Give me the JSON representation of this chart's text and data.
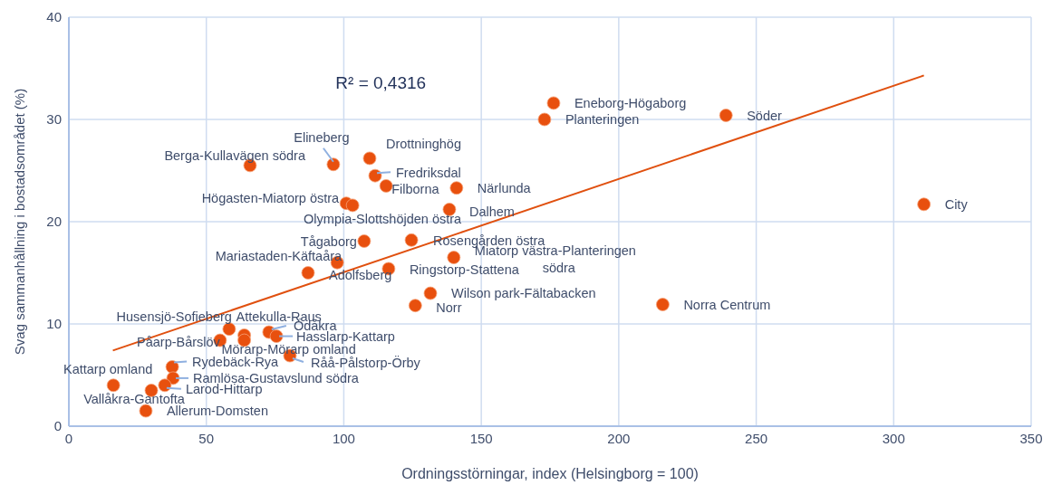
{
  "chart_data": {
    "type": "scatter",
    "xlabel": "Ordningsstörningar, index (Helsingborg = 100)",
    "ylabel": "Svag sammanhållning i bostadsområdet (%)",
    "xlim": [
      0,
      350
    ],
    "xticks": [
      0,
      50,
      100,
      150,
      200,
      250,
      300,
      350
    ],
    "ylim": [
      0,
      40
    ],
    "yticks": [
      0,
      10,
      20,
      30,
      40
    ],
    "grid": true,
    "series": [
      {
        "marker": "circle",
        "color": "#e8500e",
        "x": [
          311,
          239,
          176.3,
          173,
          216,
          141,
          138.4,
          109.4,
          111.4,
          115.4,
          96.2,
          65.9,
          100.9,
          103.2,
          107.4,
          124.6,
          140,
          97.6,
          87,
          116.3,
          131.5,
          126,
          58.3,
          63.8,
          63.8,
          55,
          72.8,
          75.5,
          80.4,
          37.6,
          37.9,
          34.9,
          30,
          16.2,
          28
        ],
        "values": [
          21.7,
          30.4,
          31.6,
          30,
          11.9,
          23.3,
          21.2,
          26.2,
          24.5,
          23.5,
          25.6,
          25.5,
          21.8,
          21.6,
          18.1,
          18.2,
          16.5,
          16,
          15,
          15.4,
          13,
          11.8,
          9.5,
          8.9,
          8.4,
          8.4,
          9.2,
          8.8,
          6.9,
          5.8,
          4.7,
          4,
          3.5,
          4,
          1.5
        ]
      },
      {
        "type": "line",
        "color": "#e0500f",
        "x": [
          16,
          311
        ],
        "values": [
          7.4,
          34.3
        ]
      }
    ],
    "annotations": [
      "R² = 0,4316",
      {
        "text": "City",
        "x": 311,
        "y": 21.7
      },
      {
        "text": "Söder",
        "x": 239,
        "y": 30.4
      },
      {
        "text": "Eneborg-Högaborg",
        "x": 176.3,
        "y": 31.6
      },
      {
        "text": "Planteringen",
        "x": 173,
        "y": 30
      },
      {
        "text": "Norra Centrum",
        "x": 216,
        "y": 11.9
      },
      {
        "text": "Närlunda",
        "x": 141,
        "y": 23.3
      },
      {
        "text": "Dalhem",
        "x": 138.4,
        "y": 21.2
      },
      {
        "text": "Drottninghög",
        "x": 109.4,
        "y": 26.2
      },
      {
        "text": "Fredriksdal",
        "x": 111.4,
        "y": 24.5
      },
      {
        "text": "Filborna",
        "x": 115.4,
        "y": 23.5
      },
      {
        "text": "Elineberg",
        "x": 96.2,
        "y": 25.6
      },
      {
        "text": "Berga-Kullavägen södra",
        "x": 65.9,
        "y": 25.5
      },
      {
        "text": "Högasten-Miatorp östra",
        "x": 100.9,
        "y": 21.8
      },
      {
        "text": "Olympia-Slottshöjden östra",
        "x": 103.2,
        "y": 21.6
      },
      {
        "text": "Tågaborg",
        "x": 107.4,
        "y": 18.1
      },
      {
        "text": "Rosengården östra",
        "x": 124.6,
        "y": 18.2
      },
      {
        "text": "Miatorp västra-Planteringen södra",
        "x": 140,
        "y": 16.5
      },
      {
        "text": "Mariastaden-Käftaåra",
        "x": 97.6,
        "y": 16
      },
      {
        "text": "Adolfsberg",
        "x": 87,
        "y": 15
      },
      {
        "text": "Ringstorp-Stattena",
        "x": 116.3,
        "y": 15.4
      },
      {
        "text": "Wilson park-Fältabacken",
        "x": 131.5,
        "y": 13
      },
      {
        "text": "Norr",
        "x": 126,
        "y": 11.8
      },
      {
        "text": "Husensjö-Sofieberg",
        "x": 58.3,
        "y": 9.5
      },
      {
        "text": "Attekulla-Raus",
        "x": 63.8,
        "y": 8.9
      },
      {
        "text": "Mörarp-Mörarp omland",
        "x": 63.8,
        "y": 8.4
      },
      {
        "text": "Påarp-Bårslöv",
        "x": 55,
        "y": 8.4
      },
      {
        "text": "Ödåkra",
        "x": 72.8,
        "y": 9.2
      },
      {
        "text": "Hasslarp-Kattarp",
        "x": 75.5,
        "y": 8.8
      },
      {
        "text": "Råå-Pålstorp-Örby",
        "x": 80.4,
        "y": 6.9
      },
      {
        "text": "Rydebäck-Rya",
        "x": 37.6,
        "y": 5.8
      },
      {
        "text": "Ramlösa-Gustavslund södra",
        "x": 37.9,
        "y": 4.7
      },
      {
        "text": "Larod-Hittarp",
        "x": 34.9,
        "y": 4
      },
      {
        "text": "Vallåkra-Gantofta",
        "x": 30,
        "y": 3.5
      },
      {
        "text": "Kattarp omland",
        "x": 16.2,
        "y": 4
      },
      {
        "text": "Allerum-Domsten",
        "x": 28,
        "y": 1.5
      }
    ]
  }
}
